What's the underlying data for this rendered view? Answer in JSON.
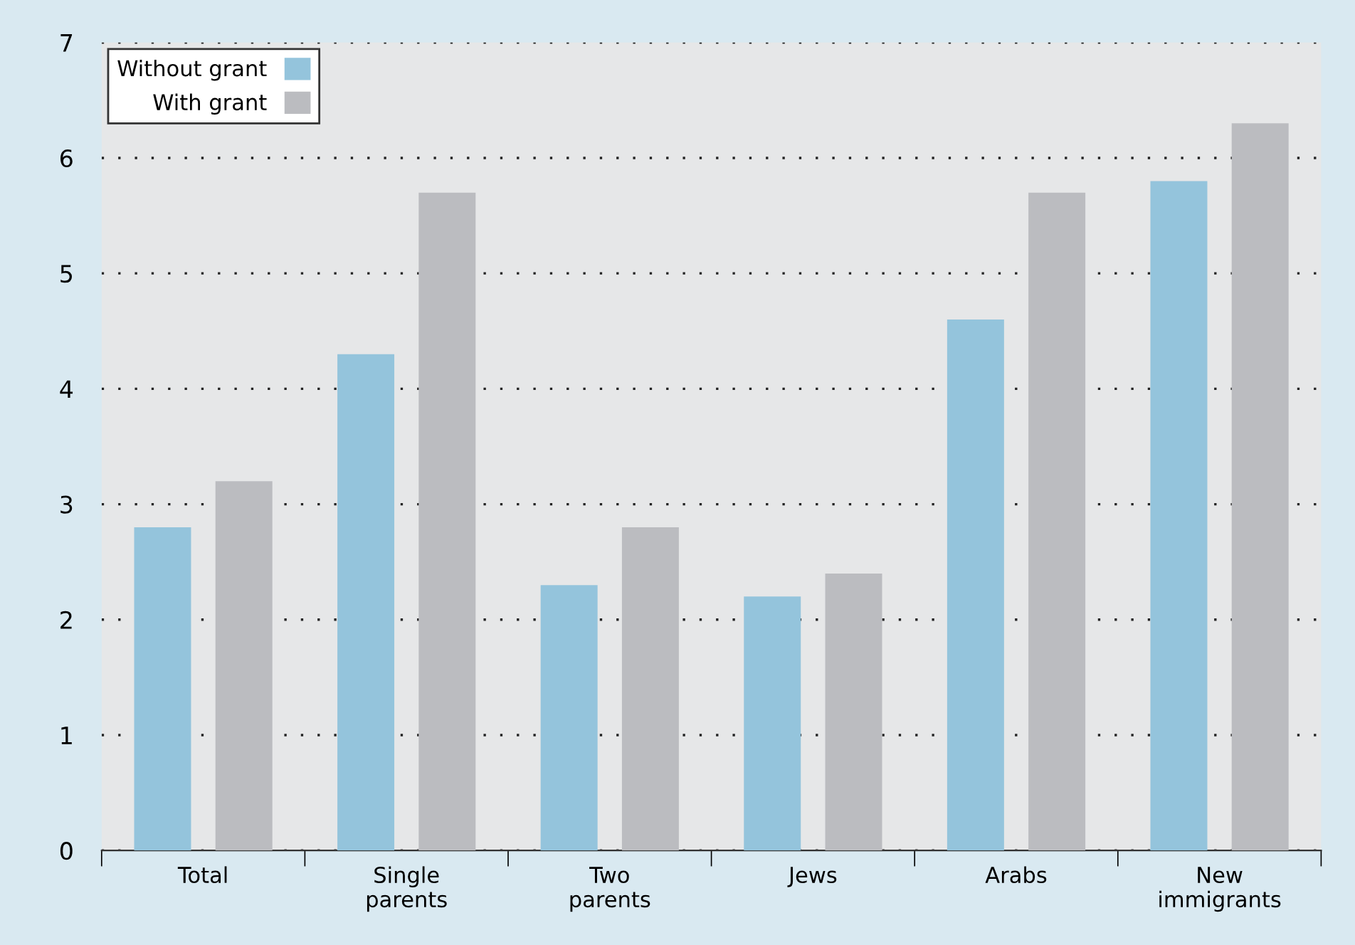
{
  "chart_data": {
    "type": "bar",
    "categories": [
      "Total",
      "Single\nparents",
      "Two\nparents",
      "Jews",
      "Arabs",
      "New\nimmigrants"
    ],
    "series": [
      {
        "name": "Without grant",
        "color": "#94c4dc",
        "values": [
          2.8,
          4.3,
          2.3,
          2.2,
          4.6,
          5.8
        ]
      },
      {
        "name": "With grant",
        "color": "#bbbcc0",
        "values": [
          3.2,
          5.7,
          2.8,
          2.4,
          5.7,
          6.3
        ]
      }
    ],
    "ylim": [
      0,
      7
    ],
    "yticks": [
      0,
      1,
      2,
      3,
      4,
      5,
      6,
      7
    ],
    "grid": "y",
    "legend": "top left"
  }
}
